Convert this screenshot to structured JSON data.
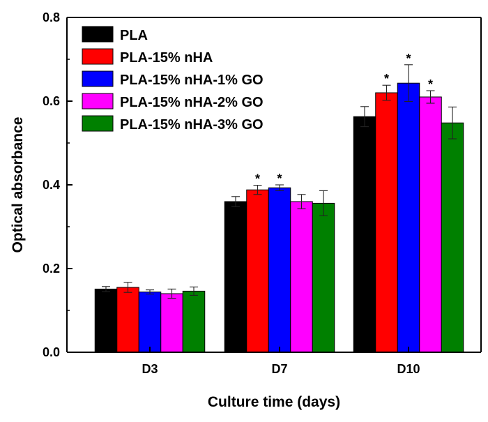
{
  "chart_data": {
    "type": "bar",
    "title": "",
    "xlabel": "Culture time (days)",
    "ylabel": "Optical absorbance",
    "ylim": [
      0,
      0.8
    ],
    "yticks": [
      0.0,
      0.2,
      0.4,
      0.6,
      0.8
    ],
    "ytick_labels": [
      "0.0",
      "0.2",
      "0.4",
      "0.6",
      "0.8"
    ],
    "categories": [
      "D3",
      "D7",
      "D10"
    ],
    "legend_position": "top-left",
    "series": [
      {
        "name": "PLA",
        "color": "#000000",
        "values": [
          0.151,
          0.36,
          0.563
        ],
        "errors": [
          0.006,
          0.012,
          0.024
        ],
        "significant": [
          false,
          false,
          false
        ]
      },
      {
        "name": "PLA-15% nHA",
        "color": "#ff0000",
        "values": [
          0.155,
          0.388,
          0.62
        ],
        "errors": [
          0.012,
          0.011,
          0.018
        ],
        "significant": [
          false,
          true,
          true
        ]
      },
      {
        "name": "PLA-15% nHA-1% GO",
        "color": "#0000ff",
        "values": [
          0.144,
          0.393,
          0.643
        ],
        "errors": [
          0.005,
          0.007,
          0.044
        ],
        "significant": [
          false,
          true,
          true
        ]
      },
      {
        "name": "PLA-15% nHA-2% GO",
        "color": "#ff00ff",
        "values": [
          0.14,
          0.36,
          0.61
        ],
        "errors": [
          0.011,
          0.017,
          0.015
        ],
        "significant": [
          false,
          false,
          true
        ]
      },
      {
        "name": "PLA-15% nHA-3% GO",
        "color": "#008000",
        "values": [
          0.146,
          0.356,
          0.548
        ],
        "errors": [
          0.01,
          0.03,
          0.038
        ],
        "significant": [
          false,
          false,
          false
        ]
      }
    ],
    "significance_marker": "*"
  }
}
